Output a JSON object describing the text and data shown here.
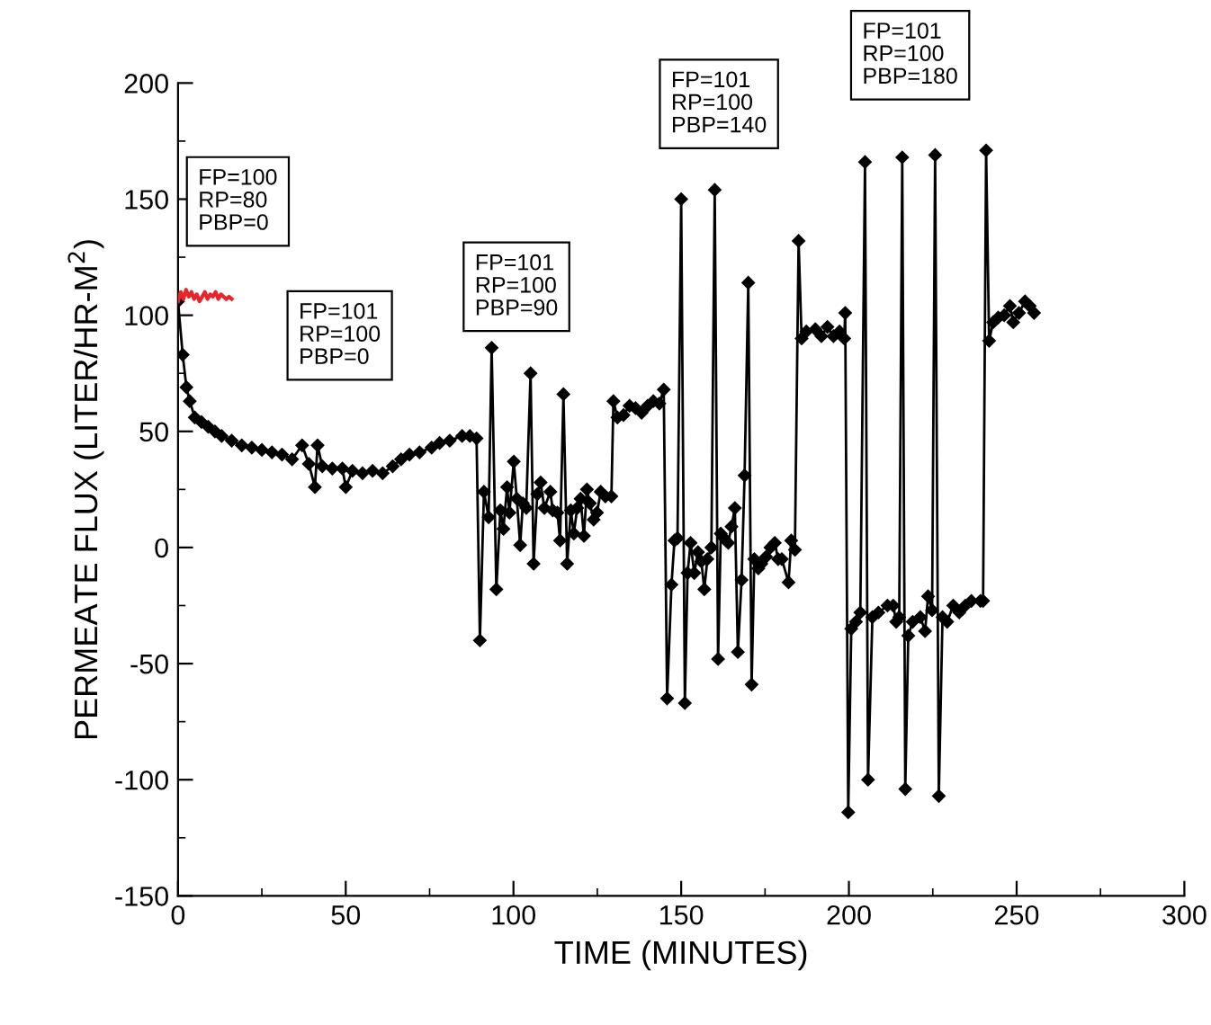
{
  "chart_data": {
    "type": "line",
    "xlabel": "TIME (MINUTES)",
    "ylabel": "PERMEATE FLUX (LITER/HR-M$^{2}$)",
    "xlim": [
      0,
      300
    ],
    "xticks": [
      0,
      50,
      100,
      150,
      200,
      250,
      300
    ],
    "ylim": [
      -150,
      200
    ],
    "yticks": [
      -150,
      -100,
      -50,
      0,
      50,
      100,
      150,
      200
    ],
    "grid": false,
    "legend": false,
    "marker": "diamond",
    "line_style": "solid",
    "annotations": [
      "FP=100\nRP=80\nPBP=0",
      "FP=101\nRP=100\nPBP=0",
      "FP=101\nRP=100\nPBP=90",
      "FP=101\nRP=100\nPBP=140",
      "FP=101\nRP=100\nPBP=180"
    ],
    "series": [
      {
        "color": "#e8262a",
        "marker": "none",
        "x": [
          0,
          0.8,
          1.6,
          2.4,
          3.2,
          4,
          4.8,
          5.6,
          6.4,
          7.2,
          8,
          8.8,
          9.6,
          10.4,
          11.2,
          12,
          12.8,
          13.6,
          14.4,
          15.2,
          16
        ],
        "values": [
          106,
          110,
          107,
          111,
          108,
          110,
          107,
          109,
          106,
          108,
          110,
          107,
          109,
          108,
          110,
          107,
          109,
          108,
          107,
          108,
          107
        ]
      },
      {
        "color": "#000000",
        "x": [
          0,
          1.4,
          2.5,
          3.5,
          5,
          7,
          9,
          11,
          13,
          16,
          19,
          22,
          25,
          28,
          31,
          34,
          37,
          39,
          40.8,
          41.6,
          43,
          46,
          49,
          50,
          52,
          55,
          58,
          61,
          64,
          66.5,
          69,
          72,
          75.6,
          78,
          81,
          84.7,
          87,
          89,
          90,
          91.2,
          92.6,
          93.5,
          94.9,
          96.1,
          97,
          98.1,
          98.8,
          100.1,
          101,
          102,
          102.8,
          103.8,
          105.1,
          106,
          107.1,
          108.1,
          109.2,
          111,
          111.7,
          113.1,
          113.9,
          114.9,
          116,
          117.1,
          118,
          119,
          120,
          121,
          121.9,
          122.8,
          123.9,
          124.9,
          126,
          127.4,
          129.2,
          129.8,
          131,
          132.8,
          134.6,
          136.4,
          138.2,
          140,
          141.7,
          143.5,
          144.8,
          145.8,
          147.1,
          148,
          148.9,
          150,
          151.1,
          151.9,
          152.8,
          153.9,
          155,
          156,
          156.9,
          157.8,
          159,
          160,
          161,
          161.8,
          162.8,
          164,
          165,
          166,
          166.9,
          168,
          168.9,
          170,
          171,
          171.8,
          173,
          173.9,
          175.3,
          176.6,
          177.9,
          178.9,
          180,
          182,
          182.8,
          183.9,
          185,
          185.9,
          187.3,
          190,
          191.8,
          193.6,
          195.4,
          197.2,
          198.6,
          198.9,
          199.8,
          200.7,
          202.1,
          203.4,
          204.8,
          205.7,
          207,
          208.8,
          211.5,
          213.2,
          214.1,
          215,
          215.9,
          216.8,
          217.7,
          219,
          221.3,
          222.7,
          223.6,
          224.8,
          225.7,
          226.8,
          227.9,
          229.3,
          231.1,
          232.9,
          234.7,
          236.5,
          239.2,
          240,
          240.9,
          241.8,
          243,
          244.5,
          246.3,
          248,
          249,
          250.7,
          252.5,
          253.9,
          255.2
        ],
        "values": [
          106,
          83,
          69,
          63,
          56,
          54,
          52,
          50,
          48,
          46,
          44,
          43,
          42,
          41,
          40,
          38,
          44,
          36,
          26,
          44,
          35,
          34,
          34,
          26,
          33,
          32,
          33,
          32,
          35,
          38,
          40,
          41,
          43,
          45,
          46,
          48,
          48,
          47,
          -40,
          24,
          13,
          86,
          -18,
          16,
          8,
          26,
          15,
          37,
          21,
          1,
          19,
          17,
          75,
          -7,
          23,
          28,
          17,
          24,
          16,
          15,
          3,
          66,
          -7,
          16,
          6,
          17,
          21,
          5,
          25,
          19,
          12,
          15,
          24,
          22,
          22,
          63,
          56,
          57,
          61,
          60,
          58,
          61,
          63,
          62,
          68,
          -65,
          -16,
          3,
          4,
          150,
          -67,
          -11,
          2,
          -11,
          -2,
          -6,
          -18,
          -5,
          0,
          154,
          -48,
          6,
          4,
          2,
          9,
          17,
          -45,
          -14,
          31,
          114,
          -59,
          -5,
          -9,
          -7,
          -4,
          0,
          2,
          -5,
          -5,
          -15,
          3,
          -1,
          132,
          90,
          93,
          94,
          91,
          95,
          91,
          93,
          90,
          101,
          -114,
          -35,
          -32,
          -28,
          166,
          -100,
          -30,
          -28,
          -25,
          -25,
          -32,
          -30,
          168,
          -104,
          -38,
          -32,
          -30,
          -36,
          -21,
          -27,
          169,
          -107,
          -30,
          -32,
          -25,
          -28,
          -25,
          -23,
          -23,
          -23,
          171,
          89,
          97,
          99,
          100,
          104,
          97,
          101,
          106,
          104,
          101
        ]
      }
    ]
  }
}
